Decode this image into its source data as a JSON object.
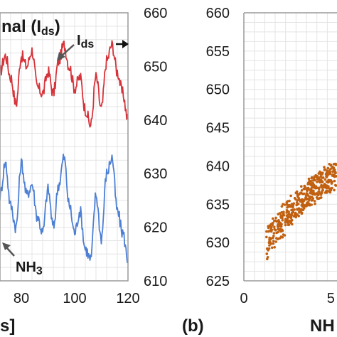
{
  "chart_data": [
    {
      "panel": "a",
      "type": "line",
      "title_fragment": "nal (I",
      "title_sub": "ds",
      "title_close": ")",
      "xlabel_fragment": "s]",
      "x_ticks": [
        "80",
        "100",
        "120"
      ],
      "x_tick_values": [
        80,
        100,
        120
      ],
      "xlim": [
        72,
        120
      ],
      "y2_ticks": [
        "610",
        "620",
        "630",
        "640",
        "650",
        "660"
      ],
      "y2lim": [
        610,
        660
      ],
      "grid": true,
      "annotations": [
        {
          "text": "I",
          "sub": "ds",
          "target": "Ids"
        },
        {
          "text": "NH",
          "sub": "3",
          "target": "NH3"
        }
      ],
      "series": [
        {
          "name": "Ids",
          "color": "#d6333a",
          "x": [
            72,
            74,
            76,
            78,
            80,
            82,
            84,
            86,
            88,
            90,
            92,
            94,
            96,
            98,
            100,
            102,
            104,
            106,
            108,
            110,
            112,
            114,
            116,
            118,
            120
          ],
          "values": [
            649,
            652,
            648,
            643,
            652,
            650,
            653,
            646,
            645,
            649,
            645,
            651,
            654,
            650,
            646,
            648,
            642,
            639,
            648,
            642,
            651,
            654,
            649,
            645,
            640
          ]
        },
        {
          "name": "NH3",
          "color": "#4d7fd4",
          "x": [
            72,
            74,
            76,
            78,
            80,
            82,
            84,
            86,
            88,
            90,
            92,
            94,
            96,
            98,
            100,
            102,
            104,
            106,
            108,
            110,
            112,
            114,
            116,
            118,
            120
          ],
          "values": [
            626,
            632,
            624,
            620,
            632,
            626,
            628,
            622,
            619,
            627,
            620,
            628,
            633,
            624,
            619,
            623,
            616,
            614,
            626,
            618,
            630,
            633,
            623,
            619,
            614
          ]
        }
      ]
    },
    {
      "panel": "b",
      "type": "scatter",
      "label": "(b)",
      "xlabel_fragment": "NH",
      "x_ticks": [
        "0",
        "5"
      ],
      "x_tick_values": [
        0,
        5
      ],
      "xlim": [
        0,
        10.5
      ],
      "y_ticks": [
        "625",
        "630",
        "635",
        "640",
        "645",
        "650",
        "655",
        "660"
      ],
      "ylim": [
        625,
        660
      ],
      "grid": true,
      "series": [
        {
          "color": "#c06010",
          "x": [
            1.5,
            2.5,
            3.5,
            4.5,
            5.5,
            6.5,
            7.5,
            8.5
          ],
          "values": [
            630.5,
            633.5,
            636.0,
            637.8,
            639.2,
            640.6,
            641.8,
            643.0
          ]
        }
      ]
    }
  ]
}
